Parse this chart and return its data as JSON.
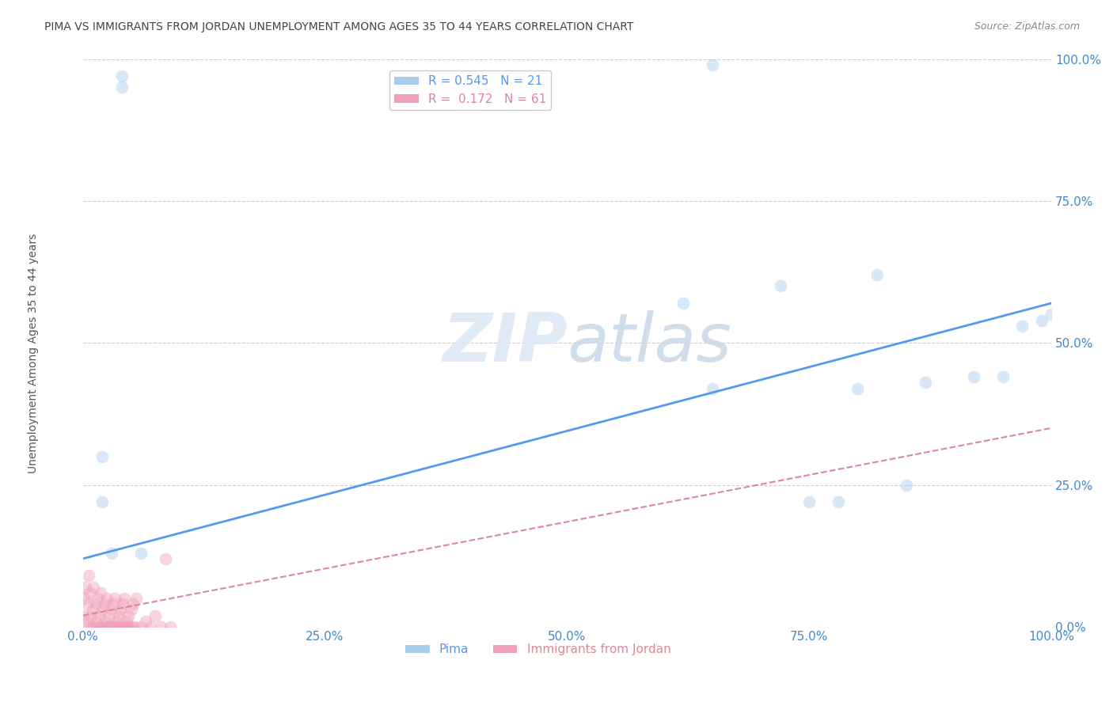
{
  "title": "PIMA VS IMMIGRANTS FROM JORDAN UNEMPLOYMENT AMONG AGES 35 TO 44 YEARS CORRELATION CHART",
  "source": "Source: ZipAtlas.com",
  "ylabel": "Unemployment Among Ages 35 to 44 years",
  "watermark": "ZIPatlas",
  "blue_R": 0.545,
  "blue_N": 21,
  "pink_R": 0.172,
  "pink_N": 61,
  "blue_color": "#aaccee",
  "pink_color": "#f0a0b8",
  "blue_line_color": "#5599ee",
  "pink_line_color": "#dd8899",
  "blue_points": [
    [
      0.02,
      0.3
    ],
    [
      0.02,
      0.22
    ],
    [
      0.03,
      0.13
    ],
    [
      0.04,
      0.97
    ],
    [
      0.04,
      0.95
    ],
    [
      0.06,
      0.13
    ],
    [
      0.65,
      0.99
    ],
    [
      0.62,
      0.57
    ],
    [
      0.72,
      0.6
    ],
    [
      0.75,
      0.22
    ],
    [
      0.78,
      0.22
    ],
    [
      0.82,
      0.62
    ],
    [
      0.85,
      0.25
    ],
    [
      0.87,
      0.43
    ],
    [
      0.92,
      0.44
    ],
    [
      0.95,
      0.44
    ],
    [
      0.97,
      0.53
    ],
    [
      0.99,
      0.54
    ],
    [
      1.0,
      0.55
    ],
    [
      0.65,
      0.42
    ],
    [
      0.8,
      0.42
    ]
  ],
  "pink_points": [
    [
      0.0,
      0.02
    ],
    [
      0.002,
      0.05
    ],
    [
      0.003,
      0.07
    ],
    [
      0.004,
      0.04
    ],
    [
      0.005,
      0.01
    ],
    [
      0.006,
      0.09
    ],
    [
      0.007,
      0.06
    ],
    [
      0.008,
      0.02
    ],
    [
      0.009,
      0.0
    ],
    [
      0.01,
      0.03
    ],
    [
      0.011,
      0.07
    ],
    [
      0.012,
      0.0
    ],
    [
      0.013,
      0.04
    ],
    [
      0.014,
      0.01
    ],
    [
      0.015,
      0.05
    ],
    [
      0.016,
      0.0
    ],
    [
      0.017,
      0.02
    ],
    [
      0.018,
      0.06
    ],
    [
      0.019,
      0.0
    ],
    [
      0.02,
      0.03
    ],
    [
      0.021,
      0.0
    ],
    [
      0.022,
      0.04
    ],
    [
      0.023,
      0.01
    ],
    [
      0.024,
      0.0
    ],
    [
      0.025,
      0.05
    ],
    [
      0.026,
      0.0
    ],
    [
      0.027,
      0.02
    ],
    [
      0.028,
      0.0
    ],
    [
      0.029,
      0.03
    ],
    [
      0.03,
      0.0
    ],
    [
      0.031,
      0.04
    ],
    [
      0.032,
      0.0
    ],
    [
      0.033,
      0.05
    ],
    [
      0.034,
      0.0
    ],
    [
      0.035,
      0.01
    ],
    [
      0.036,
      0.0
    ],
    [
      0.037,
      0.02
    ],
    [
      0.038,
      0.0
    ],
    [
      0.039,
      0.03
    ],
    [
      0.04,
      0.0
    ],
    [
      0.041,
      0.04
    ],
    [
      0.042,
      0.0
    ],
    [
      0.043,
      0.05
    ],
    [
      0.044,
      0.0
    ],
    [
      0.045,
      0.01
    ],
    [
      0.046,
      0.0
    ],
    [
      0.047,
      0.02
    ],
    [
      0.048,
      0.0
    ],
    [
      0.05,
      0.03
    ],
    [
      0.051,
      0.0
    ],
    [
      0.052,
      0.04
    ],
    [
      0.053,
      0.0
    ],
    [
      0.055,
      0.05
    ],
    [
      0.06,
      0.0
    ],
    [
      0.065,
      0.01
    ],
    [
      0.07,
      0.0
    ],
    [
      0.075,
      0.02
    ],
    [
      0.08,
      0.0
    ],
    [
      0.085,
      0.12
    ],
    [
      0.09,
      0.0
    ],
    [
      0.005,
      0.0
    ]
  ],
  "blue_line": [
    [
      0.0,
      0.12
    ],
    [
      1.0,
      0.57
    ]
  ],
  "pink_line": [
    [
      0.0,
      0.02
    ],
    [
      1.0,
      0.35
    ]
  ],
  "xlim": [
    0,
    1.0
  ],
  "ylim": [
    0,
    1.0
  ],
  "xticks": [
    0,
    0.25,
    0.5,
    0.75,
    1.0
  ],
  "yticks": [
    0,
    0.25,
    0.5,
    0.75,
    1.0
  ],
  "xticklabels": [
    "0.0%",
    "25.0%",
    "50.0%",
    "75.0%",
    "100.0%"
  ],
  "yticklabels": [
    "0.0%",
    "25.0%",
    "50.0%",
    "75.0%",
    "100.0%"
  ],
  "title_fontsize": 10,
  "axis_label_fontsize": 10,
  "tick_fontsize": 11,
  "legend_fontsize": 11,
  "marker_size": 130,
  "marker_alpha": 0.45,
  "background_color": "#ffffff",
  "grid_color": "#cccccc"
}
